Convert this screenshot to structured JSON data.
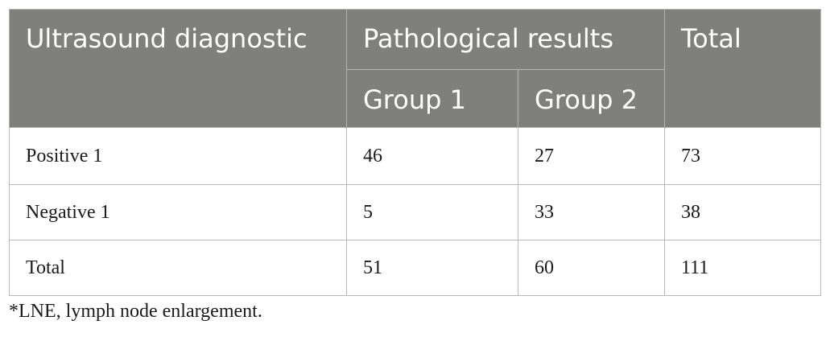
{
  "table": {
    "header": {
      "col1": "Ultrasound diagnostic",
      "group_header": "Pathological results",
      "total": "Total",
      "sub": [
        "Group 1",
        "Group 2"
      ]
    },
    "rows": [
      {
        "label": "Positive 1",
        "g1": "46",
        "g2": "27",
        "total": "73"
      },
      {
        "label": "Negative 1",
        "g1": "5",
        "g2": "33",
        "total": "38"
      },
      {
        "label": "Total",
        "g1": "51",
        "g2": "60",
        "total": "111"
      }
    ]
  },
  "footnote": "*LNE, lymph node enlargement.",
  "colors": {
    "header_bg": "#7f7f7d",
    "header_text": "#ffffff",
    "border": "#b8b8b8"
  }
}
